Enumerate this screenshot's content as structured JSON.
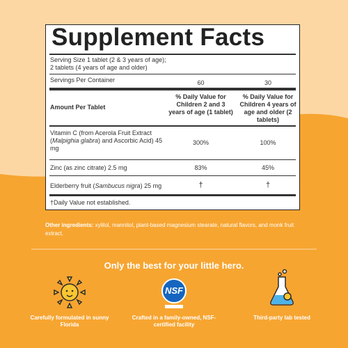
{
  "facts": {
    "title": "Supplement Facts",
    "serving_size": [
      "Serving Size 1 tablet (2 & 3 years of age);",
      "2 tablets (4 years of age and older)"
    ],
    "servings_per_container": {
      "label": "Servings Per Container",
      "values": [
        "60",
        "30"
      ]
    },
    "columns": [
      "Amount Per Tablet",
      "% Daily Value for Children 2 and 3 years of age (1 tablet)",
      "% Daily Value for Children 4 years of age and older (2 tablets)"
    ],
    "rows": [
      {
        "name": [
          "Vitamin C (from Acerola Fruit Extract (",
          "Malpighia glabra",
          ") and Ascorbic Acid) 45 mg"
        ],
        "values": [
          "300%",
          "100%"
        ]
      },
      {
        "name": [
          "Zinc (as zinc citrate) 2.5 mg"
        ],
        "values": [
          "83%",
          "45%"
        ]
      },
      {
        "name": [
          "Elderberry fruit (",
          "Sambucus nigra",
          ") 25 mg"
        ],
        "values": [
          "†",
          "†"
        ]
      }
    ],
    "footnote": "†Daily Value not established."
  },
  "other_ingredients": {
    "label": "Other ingredients:",
    "text": "xylitol, mannitol, plant-based magnesium stearate, natural flavors, and monk fruit extract."
  },
  "tagline": "Only the best for your little hero.",
  "features": [
    {
      "label": "Carefully formulated in sunny Florida"
    },
    {
      "badge": "NSF",
      "label": "Crafted in a family-owned, NSF-certified facility"
    },
    {
      "label": "Third-party lab tested"
    }
  ]
}
